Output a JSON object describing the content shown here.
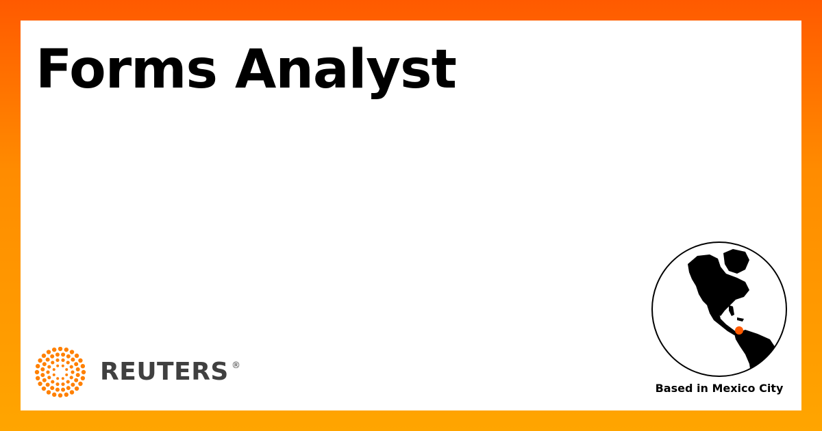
{
  "job": {
    "title": "Forms Analyst",
    "location_label": "Based in Mexico City"
  },
  "brand": {
    "name": "REUTERS",
    "registered_mark": "®",
    "accent_color": "#ff8000"
  },
  "icons": [
    "reuters-logo-icon",
    "globe-icon",
    "location-marker-icon"
  ]
}
